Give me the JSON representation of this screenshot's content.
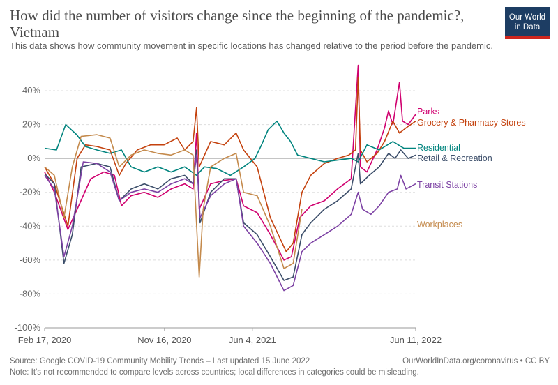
{
  "header": {
    "title": "How did the number of visitors change since the beginning of the pandemic?, Vietnam",
    "subtitle": "This data shows how community movement in specific locations has changed relative to the period before the pandemic.",
    "logo_line1": "Our World",
    "logo_line2": "in Data"
  },
  "footer": {
    "source": "Source: Google COVID-19 Community Mobility Trends – Last updated 15 June 2022",
    "note": "Note: It's not recommended to compare levels across countries; local differences in categories could be misleading.",
    "credit": "OurWorldInData.org/coronavirus • CC BY"
  },
  "chart_data": {
    "type": "line",
    "x_range": [
      "2020-02-17",
      "2022-06-11"
    ],
    "ylim": [
      -100,
      60
    ],
    "y_ticks": [
      40,
      20,
      0,
      -20,
      -40,
      -60,
      -80,
      -100
    ],
    "y_tick_labels": [
      "40%",
      "20%",
      "0%",
      "-20%",
      "-40%",
      "-60%",
      "-80%",
      "-100%"
    ],
    "x_ticks": [
      "2020-02-17",
      "2020-11-16",
      "2021-06-04",
      "2022-06-11"
    ],
    "x_tick_labels": [
      "Feb 17, 2020",
      "Nov 16, 2020",
      "Jun 4, 2021",
      "Jun 11, 2022"
    ],
    "grid": "horizontal-dotted",
    "legend": "right-labels",
    "series": [
      {
        "name": "Parks",
        "color": "#d0006f",
        "points": [
          [
            "2020-02-17",
            -8
          ],
          [
            "2020-03-10",
            -20
          ],
          [
            "2020-04-10",
            -42
          ],
          [
            "2020-05-01",
            -30
          ],
          [
            "2020-06-01",
            -12
          ],
          [
            "2020-07-01",
            -8
          ],
          [
            "2020-07-25",
            -10
          ],
          [
            "2020-08-10",
            -28
          ],
          [
            "2020-09-01",
            -22
          ],
          [
            "2020-10-01",
            -20
          ],
          [
            "2020-11-01",
            -23
          ],
          [
            "2020-12-01",
            -18
          ],
          [
            "2021-01-01",
            -15
          ],
          [
            "2021-01-20",
            -18
          ],
          [
            "2021-01-28",
            15
          ],
          [
            "2021-02-03",
            -30
          ],
          [
            "2021-03-01",
            -15
          ],
          [
            "2021-04-01",
            -13
          ],
          [
            "2021-04-28",
            -12
          ],
          [
            "2021-05-15",
            -28
          ],
          [
            "2021-06-15",
            -32
          ],
          [
            "2021-07-15",
            -45
          ],
          [
            "2021-08-15",
            -60
          ],
          [
            "2021-09-01",
            -58
          ],
          [
            "2021-09-20",
            -35
          ],
          [
            "2021-10-15",
            -28
          ],
          [
            "2021-11-15",
            -25
          ],
          [
            "2021-12-15",
            -18
          ],
          [
            "2022-01-15",
            -12
          ],
          [
            "2022-01-31",
            55
          ],
          [
            "2022-02-05",
            -5
          ],
          [
            "2022-02-20",
            -8
          ],
          [
            "2022-03-15",
            5
          ],
          [
            "2022-04-01",
            18
          ],
          [
            "2022-04-10",
            28
          ],
          [
            "2022-04-20",
            20
          ],
          [
            "2022-05-05",
            45
          ],
          [
            "2022-05-12",
            22
          ],
          [
            "2022-05-25",
            20
          ],
          [
            "2022-06-11",
            26
          ]
        ]
      },
      {
        "name": "Grocery & Pharmacy Stores",
        "color": "#c4420e",
        "points": [
          [
            "2020-02-17",
            -5
          ],
          [
            "2020-03-10",
            -15
          ],
          [
            "2020-04-10",
            -40
          ],
          [
            "2020-05-01",
            0
          ],
          [
            "2020-05-20",
            8
          ],
          [
            "2020-06-15",
            7
          ],
          [
            "2020-07-15",
            5
          ],
          [
            "2020-08-05",
            -10
          ],
          [
            "2020-08-20",
            -3
          ],
          [
            "2020-09-15",
            5
          ],
          [
            "2020-10-15",
            8
          ],
          [
            "2020-11-15",
            8
          ],
          [
            "2020-12-15",
            12
          ],
          [
            "2021-01-01",
            5
          ],
          [
            "2021-01-20",
            10
          ],
          [
            "2021-01-28",
            30
          ],
          [
            "2021-02-03",
            -5
          ],
          [
            "2021-03-01",
            10
          ],
          [
            "2021-04-01",
            8
          ],
          [
            "2021-04-28",
            15
          ],
          [
            "2021-05-15",
            5
          ],
          [
            "2021-06-15",
            -5
          ],
          [
            "2021-07-15",
            -35
          ],
          [
            "2021-08-20",
            -55
          ],
          [
            "2021-09-05",
            -50
          ],
          [
            "2021-09-25",
            -20
          ],
          [
            "2021-10-15",
            -10
          ],
          [
            "2021-11-15",
            -3
          ],
          [
            "2021-12-15",
            0
          ],
          [
            "2022-01-10",
            2
          ],
          [
            "2022-01-25",
            5
          ],
          [
            "2022-01-31",
            48
          ],
          [
            "2022-02-05",
            5
          ],
          [
            "2022-02-20",
            -2
          ],
          [
            "2022-03-15",
            3
          ],
          [
            "2022-04-01",
            10
          ],
          [
            "2022-04-20",
            22
          ],
          [
            "2022-05-05",
            15
          ],
          [
            "2022-05-20",
            18
          ],
          [
            "2022-06-11",
            22
          ]
        ]
      },
      {
        "name": "Residential",
        "color": "#00847e",
        "points": [
          [
            "2020-02-17",
            6
          ],
          [
            "2020-03-15",
            5
          ],
          [
            "2020-04-05",
            20
          ],
          [
            "2020-04-30",
            14
          ],
          [
            "2020-05-20",
            7
          ],
          [
            "2020-06-15",
            5
          ],
          [
            "2020-07-15",
            3
          ],
          [
            "2020-08-10",
            5
          ],
          [
            "2020-09-01",
            -5
          ],
          [
            "2020-10-01",
            -8
          ],
          [
            "2020-11-01",
            -5
          ],
          [
            "2020-12-01",
            -8
          ],
          [
            "2021-01-01",
            -5
          ],
          [
            "2021-01-28",
            -10
          ],
          [
            "2021-02-15",
            -5
          ],
          [
            "2021-03-15",
            -6
          ],
          [
            "2021-04-15",
            -10
          ],
          [
            "2021-05-15",
            -5
          ],
          [
            "2021-06-10",
            0
          ],
          [
            "2021-06-25",
            8
          ],
          [
            "2021-07-10",
            17
          ],
          [
            "2021-07-30",
            22
          ],
          [
            "2021-08-15",
            15
          ],
          [
            "2021-08-30",
            10
          ],
          [
            "2021-09-15",
            2
          ],
          [
            "2021-10-15",
            0
          ],
          [
            "2021-11-15",
            -2
          ],
          [
            "2021-12-15",
            -1
          ],
          [
            "2022-01-15",
            0
          ],
          [
            "2022-01-31",
            -2
          ],
          [
            "2022-02-20",
            8
          ],
          [
            "2022-03-20",
            5
          ],
          [
            "2022-04-20",
            10
          ],
          [
            "2022-05-15",
            6
          ],
          [
            "2022-06-11",
            6
          ]
        ]
      },
      {
        "name": "Retail & Recreation",
        "color": "#3b4d69",
        "points": [
          [
            "2020-02-17",
            -9
          ],
          [
            "2020-03-10",
            -15
          ],
          [
            "2020-04-01",
            -62
          ],
          [
            "2020-04-20",
            -45
          ],
          [
            "2020-05-10",
            -5
          ],
          [
            "2020-06-15",
            -3
          ],
          [
            "2020-07-15",
            -5
          ],
          [
            "2020-08-05",
            -25
          ],
          [
            "2020-09-01",
            -18
          ],
          [
            "2020-10-01",
            -15
          ],
          [
            "2020-11-01",
            -18
          ],
          [
            "2020-12-01",
            -12
          ],
          [
            "2021-01-01",
            -10
          ],
          [
            "2021-01-20",
            -15
          ],
          [
            "2021-01-28",
            5
          ],
          [
            "2021-02-05",
            -38
          ],
          [
            "2021-03-01",
            -20
          ],
          [
            "2021-04-01",
            -12
          ],
          [
            "2021-04-28",
            -12
          ],
          [
            "2021-05-15",
            -38
          ],
          [
            "2021-06-15",
            -45
          ],
          [
            "2021-07-15",
            -58
          ],
          [
            "2021-08-15",
            -72
          ],
          [
            "2021-09-05",
            -70
          ],
          [
            "2021-09-25",
            -45
          ],
          [
            "2021-10-15",
            -38
          ],
          [
            "2021-11-15",
            -30
          ],
          [
            "2021-12-15",
            -25
          ],
          [
            "2022-01-15",
            -18
          ],
          [
            "2022-01-31",
            3
          ],
          [
            "2022-02-05",
            -15
          ],
          [
            "2022-02-25",
            -10
          ],
          [
            "2022-03-20",
            -5
          ],
          [
            "2022-04-10",
            3
          ],
          [
            "2022-04-25",
            0
          ],
          [
            "2022-05-08",
            5
          ],
          [
            "2022-05-25",
            0
          ],
          [
            "2022-06-11",
            2
          ]
        ]
      },
      {
        "name": "Transit Stations",
        "color": "#7d42a4",
        "points": [
          [
            "2020-02-17",
            -10
          ],
          [
            "2020-03-10",
            -18
          ],
          [
            "2020-04-01",
            -58
          ],
          [
            "2020-04-20",
            -40
          ],
          [
            "2020-05-15",
            -2
          ],
          [
            "2020-06-15",
            -3
          ],
          [
            "2020-07-15",
            -8
          ],
          [
            "2020-08-05",
            -25
          ],
          [
            "2020-09-01",
            -20
          ],
          [
            "2020-10-01",
            -18
          ],
          [
            "2020-11-01",
            -20
          ],
          [
            "2020-12-01",
            -15
          ],
          [
            "2021-01-01",
            -12
          ],
          [
            "2021-01-20",
            -15
          ],
          [
            "2021-01-28",
            2
          ],
          [
            "2021-02-05",
            -35
          ],
          [
            "2021-03-01",
            -22
          ],
          [
            "2021-04-01",
            -15
          ],
          [
            "2021-04-28",
            -12
          ],
          [
            "2021-05-15",
            -40
          ],
          [
            "2021-06-15",
            -50
          ],
          [
            "2021-07-15",
            -62
          ],
          [
            "2021-08-15",
            -78
          ],
          [
            "2021-09-05",
            -75
          ],
          [
            "2021-09-25",
            -55
          ],
          [
            "2021-10-15",
            -50
          ],
          [
            "2021-11-15",
            -45
          ],
          [
            "2021-12-15",
            -40
          ],
          [
            "2022-01-15",
            -33
          ],
          [
            "2022-01-31",
            -20
          ],
          [
            "2022-02-10",
            -30
          ],
          [
            "2022-03-01",
            -33
          ],
          [
            "2022-03-20",
            -28
          ],
          [
            "2022-04-10",
            -20
          ],
          [
            "2022-04-30",
            -18
          ],
          [
            "2022-05-08",
            -10
          ],
          [
            "2022-05-20",
            -18
          ],
          [
            "2022-06-11",
            -15
          ]
        ]
      },
      {
        "name": "Workplaces",
        "color": "#c48a4c",
        "points": [
          [
            "2020-02-17",
            -5
          ],
          [
            "2020-03-10",
            -10
          ],
          [
            "2020-04-01",
            -35
          ],
          [
            "2020-04-20",
            -5
          ],
          [
            "2020-05-10",
            13
          ],
          [
            "2020-06-15",
            14
          ],
          [
            "2020-07-15",
            12
          ],
          [
            "2020-08-05",
            -5
          ],
          [
            "2020-09-01",
            2
          ],
          [
            "2020-10-01",
            5
          ],
          [
            "2020-11-01",
            3
          ],
          [
            "2020-12-01",
            2
          ],
          [
            "2021-01-01",
            5
          ],
          [
            "2021-01-20",
            2
          ],
          [
            "2021-02-03",
            -70
          ],
          [
            "2021-02-12",
            -30
          ],
          [
            "2021-03-01",
            -5
          ],
          [
            "2021-04-01",
            0
          ],
          [
            "2021-04-28",
            3
          ],
          [
            "2021-05-15",
            -20
          ],
          [
            "2021-06-15",
            -22
          ],
          [
            "2021-07-15",
            -40
          ],
          [
            "2021-08-15",
            -65
          ],
          [
            "2021-09-05",
            -62
          ],
          [
            "2021-09-25",
            -30
          ]
        ]
      }
    ]
  }
}
